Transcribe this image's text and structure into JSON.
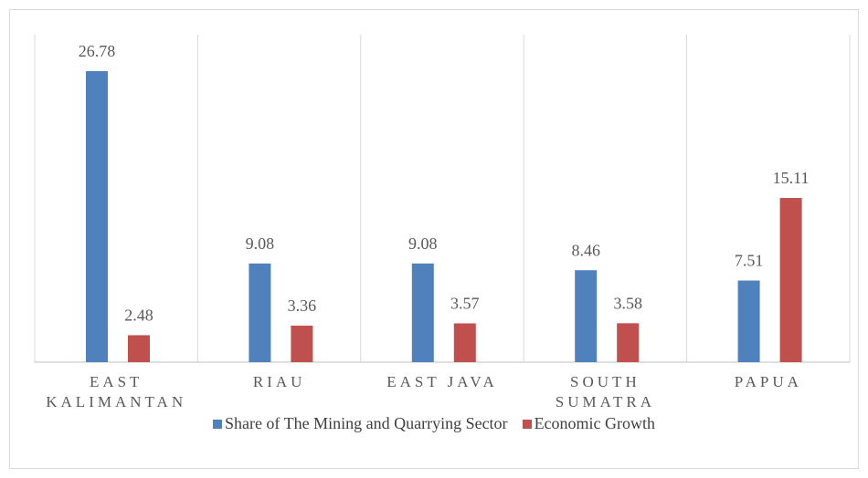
{
  "chart_data": {
    "type": "bar",
    "categories": [
      "EAST KALIMANTAN",
      "RIAU",
      "EAST JAVA",
      "SOUTH SUMATRA",
      "PAPUA"
    ],
    "series": [
      {
        "name": "Share of The Mining and Quarrying Sector",
        "color": "#4f81bd",
        "values": [
          26.78,
          9.08,
          9.08,
          8.46,
          7.51
        ]
      },
      {
        "name": "Economic Growth",
        "color": "#c0504d",
        "values": [
          2.48,
          3.36,
          3.57,
          3.58,
          15.11
        ]
      }
    ],
    "legend": "bottom"
  }
}
